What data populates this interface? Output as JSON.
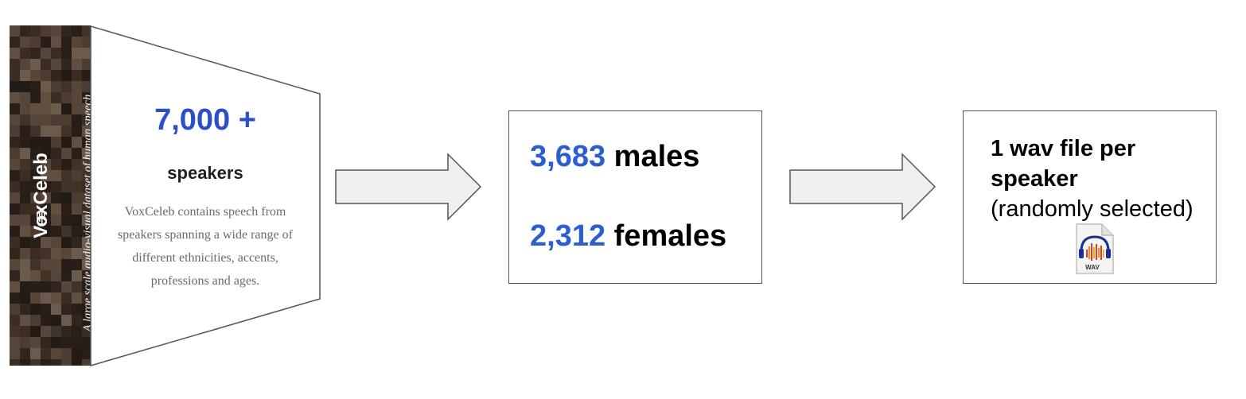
{
  "banner": {
    "title": "VoxCeleb",
    "subtitle": "A large scale audio-visual dataset of human speech"
  },
  "source": {
    "count": "7,000 +",
    "unit": "speakers",
    "description_lines": [
      "VoxCeleb contains speech from",
      "speakers spanning a wide range of",
      "different ethnicities, accents,",
      "professions and ages."
    ]
  },
  "split": {
    "males_count": "3,683",
    "males_label": "males",
    "females_count": "2,312",
    "females_label": "females"
  },
  "selection": {
    "line1": "1 wav file per",
    "line2": "speaker",
    "line3": "(randomly selected)",
    "icon_label": "WAV"
  },
  "colors": {
    "accent_blue": "#2b5fd0",
    "arrow_fill": "#efefef",
    "border": "#555555"
  }
}
